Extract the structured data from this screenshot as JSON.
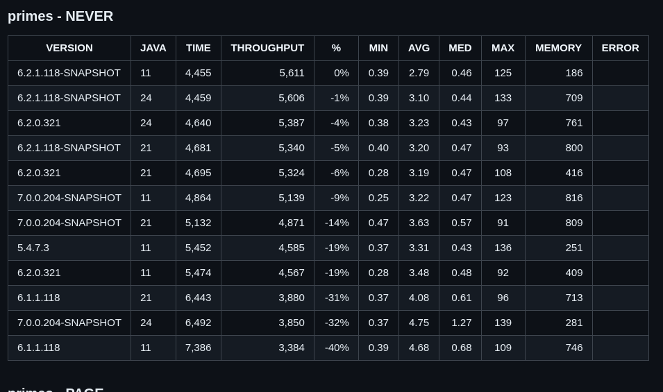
{
  "section": {
    "title": "primes - NEVER",
    "next_title": "primes - PAGE"
  },
  "table": {
    "headers": [
      "VERSION",
      "JAVA",
      "TIME",
      "THROUGHPUT",
      "%",
      "MIN",
      "AVG",
      "MED",
      "MAX",
      "MEMORY",
      "ERROR"
    ],
    "rows": [
      [
        "6.2.1.118-SNAPSHOT",
        "11",
        "4,455",
        "5,611",
        "0%",
        "0.39",
        "2.79",
        "0.46",
        "125",
        "186",
        ""
      ],
      [
        "6.2.1.118-SNAPSHOT",
        "24",
        "4,459",
        "5,606",
        "-1%",
        "0.39",
        "3.10",
        "0.44",
        "133",
        "709",
        ""
      ],
      [
        "6.2.0.321",
        "24",
        "4,640",
        "5,387",
        "-4%",
        "0.38",
        "3.23",
        "0.43",
        "97",
        "761",
        ""
      ],
      [
        "6.2.1.118-SNAPSHOT",
        "21",
        "4,681",
        "5,340",
        "-5%",
        "0.40",
        "3.20",
        "0.47",
        "93",
        "800",
        ""
      ],
      [
        "6.2.0.321",
        "21",
        "4,695",
        "5,324",
        "-6%",
        "0.28",
        "3.19",
        "0.47",
        "108",
        "416",
        ""
      ],
      [
        "7.0.0.204-SNAPSHOT",
        "11",
        "4,864",
        "5,139",
        "-9%",
        "0.25",
        "3.22",
        "0.47",
        "123",
        "816",
        ""
      ],
      [
        "7.0.0.204-SNAPSHOT",
        "21",
        "5,132",
        "4,871",
        "-14%",
        "0.47",
        "3.63",
        "0.57",
        "91",
        "809",
        ""
      ],
      [
        "5.4.7.3",
        "11",
        "5,452",
        "4,585",
        "-19%",
        "0.37",
        "3.31",
        "0.43",
        "136",
        "251",
        ""
      ],
      [
        "6.2.0.321",
        "11",
        "5,474",
        "4,567",
        "-19%",
        "0.28",
        "3.48",
        "0.48",
        "92",
        "409",
        ""
      ],
      [
        "6.1.1.118",
        "21",
        "6,443",
        "3,880",
        "-31%",
        "0.37",
        "4.08",
        "0.61",
        "96",
        "713",
        ""
      ],
      [
        "7.0.0.204-SNAPSHOT",
        "24",
        "6,492",
        "3,850",
        "-32%",
        "0.37",
        "4.75",
        "1.27",
        "139",
        "281",
        ""
      ],
      [
        "6.1.1.118",
        "11",
        "7,386",
        "3,384",
        "-40%",
        "0.39",
        "4.68",
        "0.68",
        "109",
        "746",
        ""
      ]
    ]
  },
  "colors": {
    "background": "#0d1117",
    "row_alt": "#151b23",
    "border": "#3d444d",
    "text": "#e6edf3"
  }
}
